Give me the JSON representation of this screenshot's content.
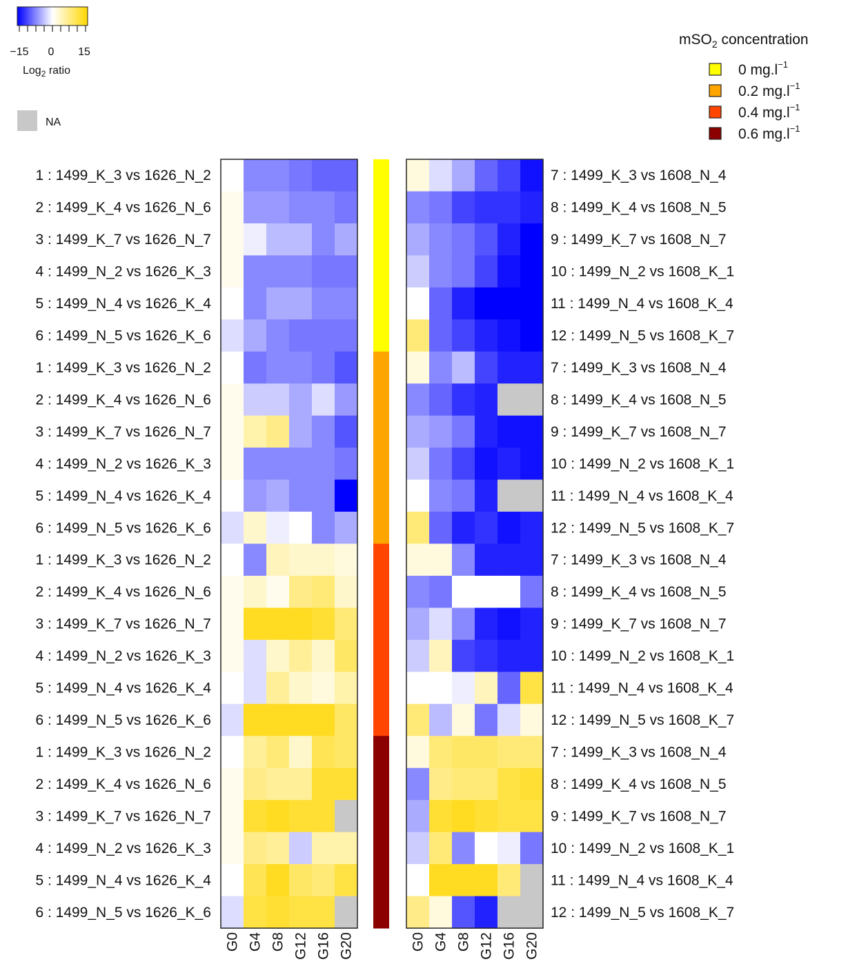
{
  "chart_data": {
    "type": "heatmap",
    "columns": [
      "G0",
      "G4",
      "G8",
      "G12",
      "G16",
      "G20"
    ],
    "color_scale": {
      "low": -15,
      "mid": 0,
      "high": 15,
      "low_color": "#0000ff",
      "mid_color": "#ffffff",
      "high_color": "#ffd700",
      "tick_labels": [
        "−15",
        "0",
        "15"
      ],
      "label_main": "Log",
      "label_sub": "2",
      "label_rest": " ratio"
    },
    "na": {
      "label": "NA",
      "color": "#c8c8c8"
    },
    "concentration_legend": {
      "title_main": "mSO",
      "title_sub": "2",
      "title_rest": " concentration",
      "items": [
        {
          "label": "0 mg.l",
          "sup": "−1",
          "color": "#ffff00"
        },
        {
          "label": "0.2 mg.l",
          "sup": "−1",
          "color": "#ffa500"
        },
        {
          "label": "0.4 mg.l",
          "sup": "−1",
          "color": "#ff4500"
        },
        {
          "label": "0.6 mg.l",
          "sup": "−1",
          "color": "#8b0000"
        }
      ]
    },
    "row_groups": [
      "0 mg.l",
      "0.2 mg.l",
      "0.4 mg.l",
      "0.6 mg.l"
    ],
    "left_rows": [
      "1 : 1499_K_3 vs 1626_N_2",
      "2 : 1499_K_4 vs 1626_N_6",
      "3 : 1499_K_7 vs 1626_N_7",
      "4 : 1499_N_2 vs 1626_K_3",
      "5 : 1499_N_4 vs 1626_K_4",
      "6 : 1499_N_5 vs 1626_K_6",
      "1 : 1499_K_3 vs 1626_N_2",
      "2 : 1499_K_4 vs 1626_N_6",
      "3 : 1499_K_7 vs 1626_N_7",
      "4 : 1499_N_2 vs 1626_K_3",
      "5 : 1499_N_4 vs 1626_K_4",
      "6 : 1499_N_5 vs 1626_K_6",
      "1 : 1499_K_3 vs 1626_N_2",
      "2 : 1499_K_4 vs 1626_N_6",
      "3 : 1499_K_7 vs 1626_N_7",
      "4 : 1499_N_2 vs 1626_K_3",
      "5 : 1499_N_4 vs 1626_K_4",
      "6 : 1499_N_5 vs 1626_K_6",
      "1 : 1499_K_3 vs 1626_N_2",
      "2 : 1499_K_4 vs 1626_N_6",
      "3 : 1499_K_7 vs 1626_N_7",
      "4 : 1499_N_2 vs 1626_K_3",
      "5 : 1499_N_4 vs 1626_K_4",
      "6 : 1499_N_5 vs 1626_K_6"
    ],
    "right_rows": [
      "7 : 1499_K_3 vs 1608_N_4",
      "8 : 1499_K_4 vs 1608_N_5",
      "9 : 1499_K_7 vs 1608_N_7",
      "10 : 1499_N_2 vs 1608_K_1",
      "11 : 1499_N_4 vs 1608_K_4",
      "12 : 1499_N_5 vs 1608_K_7",
      "7 : 1499_K_3 vs 1608_N_4",
      "8 : 1499_K_4 vs 1608_N_5",
      "9 : 1499_K_7 vs 1608_N_7",
      "10 : 1499_N_2 vs 1608_K_1",
      "11 : 1499_N_4 vs 1608_K_4",
      "12 : 1499_N_5 vs 1608_K_7",
      "7 : 1499_K_3 vs 1608_N_4",
      "8 : 1499_K_4 vs 1608_N_5",
      "9 : 1499_K_7 vs 1608_N_7",
      "10 : 1499_N_2 vs 1608_K_1",
      "11 : 1499_N_4 vs 1608_K_4",
      "12 : 1499_N_5 vs 1608_K_7",
      "7 : 1499_K_3 vs 1608_N_4",
      "8 : 1499_K_4 vs 1608_N_5",
      "9 : 1499_K_7 vs 1608_N_7",
      "10 : 1499_N_2 vs 1608_K_1",
      "11 : 1499_N_4 vs 1608_K_4",
      "12 : 1499_N_5 vs 1608_K_7"
    ],
    "left_values": [
      [
        0,
        -7,
        -7,
        -8,
        -9,
        -9
      ],
      [
        1,
        -6,
        -6,
        -7,
        -7,
        -8
      ],
      [
        1,
        -1,
        -4,
        -4,
        -7,
        -5
      ],
      [
        1,
        -7,
        -7,
        -7,
        -8,
        -8
      ],
      [
        0,
        -7,
        -5,
        -5,
        -7,
        -7
      ],
      [
        -2,
        -5,
        -7,
        -8,
        -8,
        -8
      ],
      [
        0,
        -8,
        -7,
        -7,
        -8,
        -10
      ],
      [
        1,
        -3,
        -3,
        -5,
        -2,
        -6
      ],
      [
        1,
        5,
        7,
        -5,
        -7,
        -10
      ],
      [
        1,
        -7,
        -7,
        -7,
        -7,
        -8
      ],
      [
        0,
        -6,
        -5,
        -7,
        -7,
        -15
      ],
      [
        -2,
        3,
        -1,
        0,
        -7,
        -5
      ],
      [
        0,
        -7,
        4,
        3,
        3,
        2
      ],
      [
        1,
        3,
        1,
        7,
        8,
        3
      ],
      [
        1,
        13,
        13,
        13,
        12,
        8
      ],
      [
        1,
        -2,
        3,
        6,
        3,
        9
      ],
      [
        0,
        -2,
        6,
        3,
        2,
        5
      ],
      [
        -2,
        13,
        13,
        13,
        13,
        9
      ],
      [
        0,
        6,
        8,
        3,
        10,
        9
      ],
      [
        1,
        7,
        6,
        6,
        12,
        12
      ],
      [
        1,
        12,
        13,
        12,
        12,
        null
      ],
      [
        1,
        7,
        6,
        -3,
        5,
        5
      ],
      [
        0,
        10,
        13,
        9,
        8,
        11
      ],
      [
        -2,
        11,
        12,
        11,
        11,
        null
      ]
    ],
    "right_values": [
      [
        2,
        -2,
        -5,
        -9,
        -11,
        -14
      ],
      [
        -7,
        -8,
        -11,
        -12,
        -12,
        -13
      ],
      [
        -5,
        -7,
        -8,
        -10,
        -13,
        -15
      ],
      [
        -3,
        -7,
        -8,
        -11,
        -14,
        -15
      ],
      [
        0,
        -9,
        -13,
        -15,
        -15,
        -15
      ],
      [
        8,
        -9,
        -11,
        -13,
        -14,
        -15
      ],
      [
        2,
        -7,
        -4,
        -11,
        -13,
        -13
      ],
      [
        -7,
        -9,
        -12,
        -13,
        null,
        null
      ],
      [
        -5,
        -6,
        -8,
        -13,
        -14,
        -14
      ],
      [
        -3,
        -8,
        -11,
        -14,
        -13,
        -14
      ],
      [
        0,
        -7,
        -8,
        -13,
        null,
        null
      ],
      [
        8,
        -9,
        -13,
        -12,
        -14,
        -13
      ],
      [
        2,
        2,
        -7,
        -13,
        -13,
        -13
      ],
      [
        -7,
        -8,
        0,
        0,
        0,
        -8
      ],
      [
        -5,
        -2,
        -7,
        -13,
        -14,
        -13
      ],
      [
        -3,
        4,
        -11,
        -12,
        -13,
        -13
      ],
      [
        0,
        0,
        -1,
        4,
        -9,
        11
      ],
      [
        8,
        -4,
        2,
        -8,
        -2,
        2
      ],
      [
        2,
        8,
        9,
        9,
        8,
        8
      ],
      [
        -7,
        7,
        8,
        8,
        11,
        12
      ],
      [
        -5,
        12,
        13,
        12,
        11,
        11
      ],
      [
        -3,
        8,
        -7,
        0,
        -1,
        -8
      ],
      [
        0,
        13,
        13,
        13,
        8,
        null
      ],
      [
        7,
        2,
        -10,
        -13,
        null,
        null
      ]
    ]
  }
}
